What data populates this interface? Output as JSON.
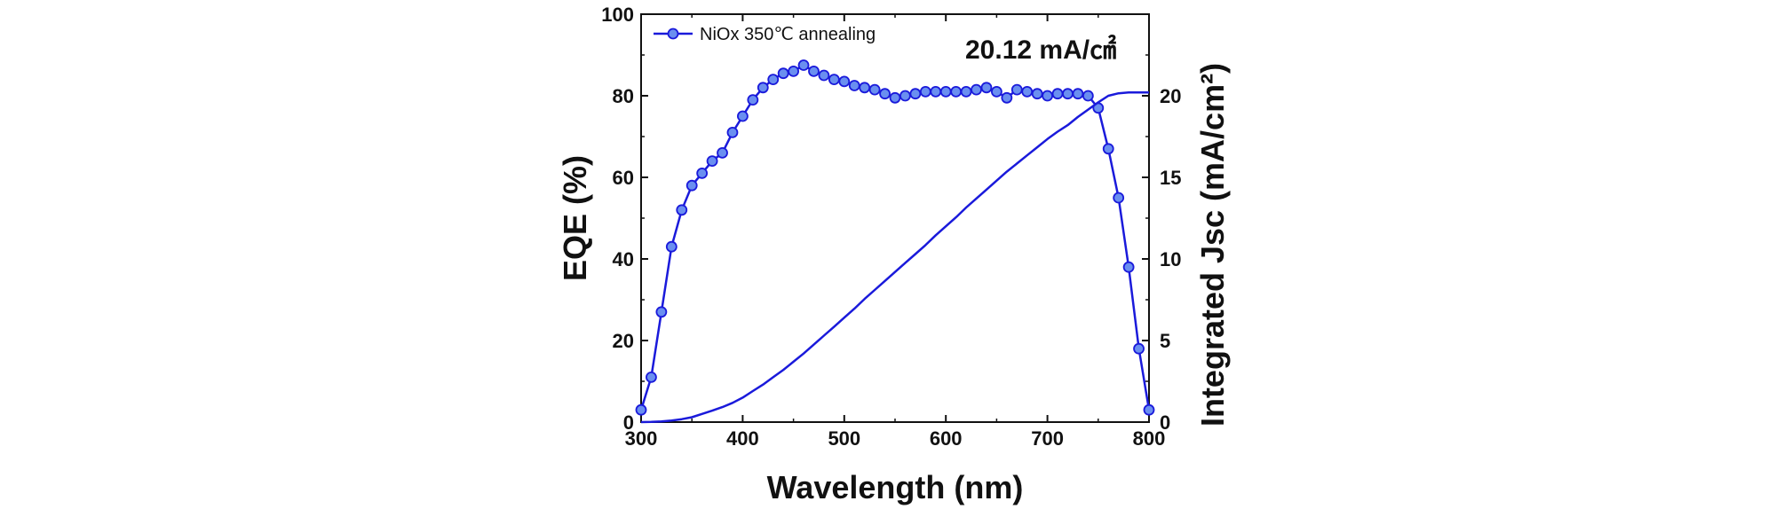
{
  "chart_data": {
    "type": "line",
    "xlabel": "Wavelength (nm)",
    "ylabel_left": "EQE (%)",
    "ylabel_right": "Integrated Jsc (mA/cm²)",
    "xlim": [
      300,
      800
    ],
    "ylim_left": [
      0,
      100
    ],
    "ylim_right": [
      0,
      25
    ],
    "x_ticks": [
      "300",
      "400",
      "500",
      "600",
      "700",
      "800"
    ],
    "y_left_ticks": [
      "0",
      "20",
      "40",
      "60",
      "80",
      "100"
    ],
    "y_right_ticks": [
      "0",
      "5",
      "10",
      "15",
      "20"
    ],
    "annotation": "20.12 mA/㎠",
    "legend_position": "top-left",
    "line_color": "#1a1adb",
    "series": [
      {
        "name": "NiOx 350℃ annealing",
        "axis": "left",
        "marker": "circle",
        "x": [
          300,
          310,
          320,
          330,
          340,
          350,
          360,
          370,
          380,
          390,
          400,
          410,
          420,
          430,
          440,
          450,
          460,
          470,
          480,
          490,
          500,
          510,
          520,
          530,
          540,
          550,
          560,
          570,
          580,
          590,
          600,
          610,
          620,
          630,
          640,
          650,
          660,
          670,
          680,
          690,
          700,
          710,
          720,
          730,
          740,
          750,
          760,
          770,
          780,
          790,
          800
        ],
        "values": [
          3,
          11,
          27,
          43,
          52,
          58,
          61,
          64,
          66,
          71,
          75,
          79,
          82,
          84,
          85.5,
          86,
          87.5,
          86,
          85,
          84,
          83.5,
          82.5,
          82,
          81.5,
          80.5,
          79.5,
          80,
          80.5,
          81,
          81,
          81,
          81,
          81,
          81.5,
          82,
          81,
          79.5,
          81.5,
          81,
          80.5,
          80,
          80.5,
          80.5,
          80.5,
          80,
          77,
          67,
          55,
          38,
          18,
          3
        ]
      },
      {
        "name": "",
        "axis": "right",
        "marker": "none",
        "x": [
          300,
          310,
          320,
          330,
          340,
          350,
          360,
          370,
          380,
          390,
          400,
          410,
          420,
          430,
          440,
          450,
          460,
          470,
          480,
          490,
          500,
          510,
          520,
          530,
          540,
          550,
          560,
          570,
          580,
          590,
          600,
          610,
          620,
          630,
          640,
          650,
          660,
          670,
          680,
          690,
          700,
          710,
          720,
          730,
          740,
          750,
          760,
          770,
          780,
          790,
          800
        ],
        "values": [
          0,
          0.01,
          0.04,
          0.1,
          0.18,
          0.3,
          0.5,
          0.7,
          0.92,
          1.18,
          1.5,
          1.9,
          2.3,
          2.75,
          3.2,
          3.7,
          4.2,
          4.75,
          5.3,
          5.85,
          6.4,
          6.95,
          7.55,
          8.1,
          8.65,
          9.2,
          9.75,
          10.3,
          10.85,
          11.45,
          12.0,
          12.55,
          13.15,
          13.7,
          14.25,
          14.8,
          15.35,
          15.85,
          16.35,
          16.85,
          17.35,
          17.8,
          18.2,
          18.7,
          19.15,
          19.6,
          20.0,
          20.15,
          20.2,
          20.2,
          20.2
        ]
      }
    ]
  }
}
